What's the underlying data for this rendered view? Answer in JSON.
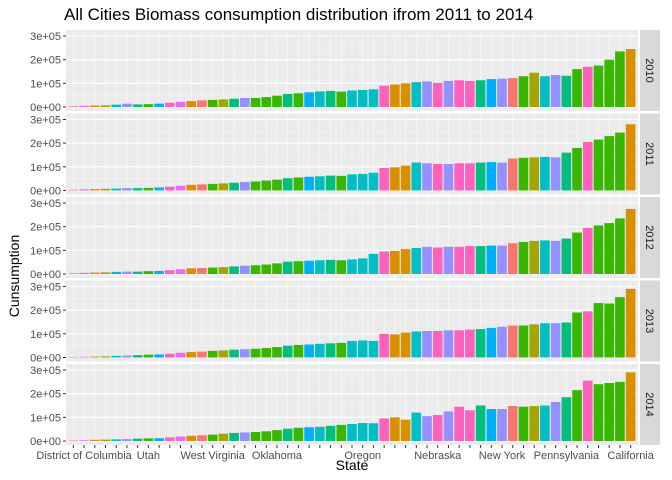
{
  "chart_data": {
    "type": "bar",
    "title": "All Cities Biomass consumption distribution ifrom 2011 to 2014",
    "xlabel": "State",
    "ylabel": "Cunsumption",
    "ylim": [
      0,
      300000
    ],
    "y_ticks": [
      0,
      100000,
      200000,
      300000
    ],
    "y_tick_labels": [
      "0e+00",
      "1e+05",
      "2e+05",
      "3e+05"
    ],
    "grid": true,
    "legend": "none",
    "facet": "rows",
    "x_tick_labels": [
      {
        "index": 1,
        "label": "District of Columbia"
      },
      {
        "index": 7,
        "label": "Utah"
      },
      {
        "index": 13,
        "label": "West Virginia"
      },
      {
        "index": 19,
        "label": "Oklahoma"
      },
      {
        "index": 27,
        "label": "Oregon"
      },
      {
        "index": 34,
        "label": "Nebraska"
      },
      {
        "index": 40,
        "label": "New York"
      },
      {
        "index": 46,
        "label": "Pennsylvania"
      },
      {
        "index": 52,
        "label": "California"
      }
    ],
    "colors": [
      "#F8766D",
      "#D89000",
      "#A3A500",
      "#39B600",
      "#00BF7D",
      "#00BFC4",
      "#00B0F6",
      "#9590FF",
      "#E76BF3",
      "#FF62BC"
    ],
    "bar_colors": [
      "#F8766D",
      "#E76BF3",
      "#D89000",
      "#A3A500",
      "#00BFC4",
      "#9590FF",
      "#00BF7D",
      "#39B600",
      "#00B0F6",
      "#FF62BC",
      "#E76BF3",
      "#D89000",
      "#F8766D",
      "#39B600",
      "#A3A500",
      "#00BF7D",
      "#9590FF",
      "#39B600",
      "#39B600",
      "#39B600",
      "#00BF7D",
      "#39B600",
      "#00B0F6",
      "#00BFC4",
      "#00BF7D",
      "#39B600",
      "#00BFC4",
      "#00BFC4",
      "#00BFC4",
      "#FF62BC",
      "#D89000",
      "#D89000",
      "#00BFC4",
      "#9590FF",
      "#FF62BC",
      "#9590FF",
      "#FF62BC",
      "#FF62BC",
      "#00BF7D",
      "#00B0F6",
      "#9590FF",
      "#F8766D",
      "#39B600",
      "#A3A500",
      "#00BFC4",
      "#9590FF",
      "#00BF7D",
      "#39B600",
      "#FF62BC",
      "#39B600",
      "#39B600",
      "#39B600",
      "#D89000"
    ],
    "series": [
      {
        "name": "2010",
        "values": [
          3000,
          5000,
          6000,
          7000,
          10000,
          14000,
          11000,
          12000,
          14000,
          18000,
          22000,
          25000,
          28000,
          30000,
          32000,
          35000,
          38000,
          38000,
          42000,
          48000,
          55000,
          58000,
          62000,
          66000,
          68000,
          65000,
          70000,
          72000,
          75000,
          90000,
          95000,
          100000,
          105000,
          108000,
          102000,
          110000,
          113000,
          110000,
          113000,
          118000,
          120000,
          122000,
          130000,
          145000,
          130000,
          135000,
          132000,
          160000,
          170000,
          175000,
          200000,
          235000,
          245000
        ]
      },
      {
        "name": "2011",
        "values": [
          3000,
          5000,
          6000,
          7000,
          8000,
          10000,
          10000,
          11000,
          13000,
          16000,
          20000,
          24000,
          26000,
          28000,
          30000,
          33000,
          36000,
          38000,
          42000,
          46000,
          52000,
          55000,
          58000,
          60000,
          63000,
          62000,
          68000,
          70000,
          75000,
          95000,
          98000,
          105000,
          118000,
          115000,
          112000,
          112000,
          115000,
          115000,
          118000,
          120000,
          118000,
          135000,
          138000,
          140000,
          142000,
          140000,
          160000,
          180000,
          205000,
          215000,
          230000,
          245000,
          280000
        ]
      },
      {
        "name": "2012",
        "values": [
          3000,
          5000,
          6000,
          7000,
          9000,
          10000,
          10000,
          12000,
          13000,
          16000,
          20000,
          24000,
          25000,
          27000,
          29000,
          32000,
          35000,
          37000,
          40000,
          45000,
          52000,
          54000,
          56000,
          58000,
          60000,
          58000,
          62000,
          66000,
          85000,
          95000,
          98000,
          105000,
          110000,
          115000,
          112000,
          115000,
          115000,
          118000,
          118000,
          120000,
          120000,
          130000,
          135000,
          140000,
          142000,
          140000,
          150000,
          175000,
          195000,
          205000,
          215000,
          235000,
          275000
        ]
      },
      {
        "name": "2013",
        "values": [
          2000,
          3000,
          4000,
          5000,
          7000,
          8000,
          10000,
          12000,
          13000,
          16000,
          20000,
          23000,
          25000,
          28000,
          30000,
          33000,
          35000,
          37000,
          40000,
          44000,
          50000,
          53000,
          55000,
          58000,
          60000,
          62000,
          70000,
          72000,
          70000,
          100000,
          98000,
          105000,
          110000,
          112000,
          112000,
          115000,
          115000,
          118000,
          120000,
          125000,
          130000,
          135000,
          135000,
          140000,
          145000,
          145000,
          148000,
          190000,
          195000,
          230000,
          228000,
          255000,
          290000
        ]
      },
      {
        "name": "2014",
        "values": [
          2000,
          3000,
          5000,
          6000,
          7000,
          8000,
          10000,
          11000,
          12000,
          15000,
          19000,
          22000,
          24000,
          27000,
          31000,
          34000,
          36000,
          38000,
          41000,
          46000,
          52000,
          56000,
          58000,
          60000,
          64000,
          68000,
          72000,
          76000,
          75000,
          95000,
          100000,
          90000,
          120000,
          105000,
          110000,
          125000,
          145000,
          130000,
          150000,
          135000,
          135000,
          148000,
          145000,
          148000,
          150000,
          165000,
          185000,
          215000,
          255000,
          240000,
          245000,
          250000,
          290000
        ]
      }
    ]
  }
}
